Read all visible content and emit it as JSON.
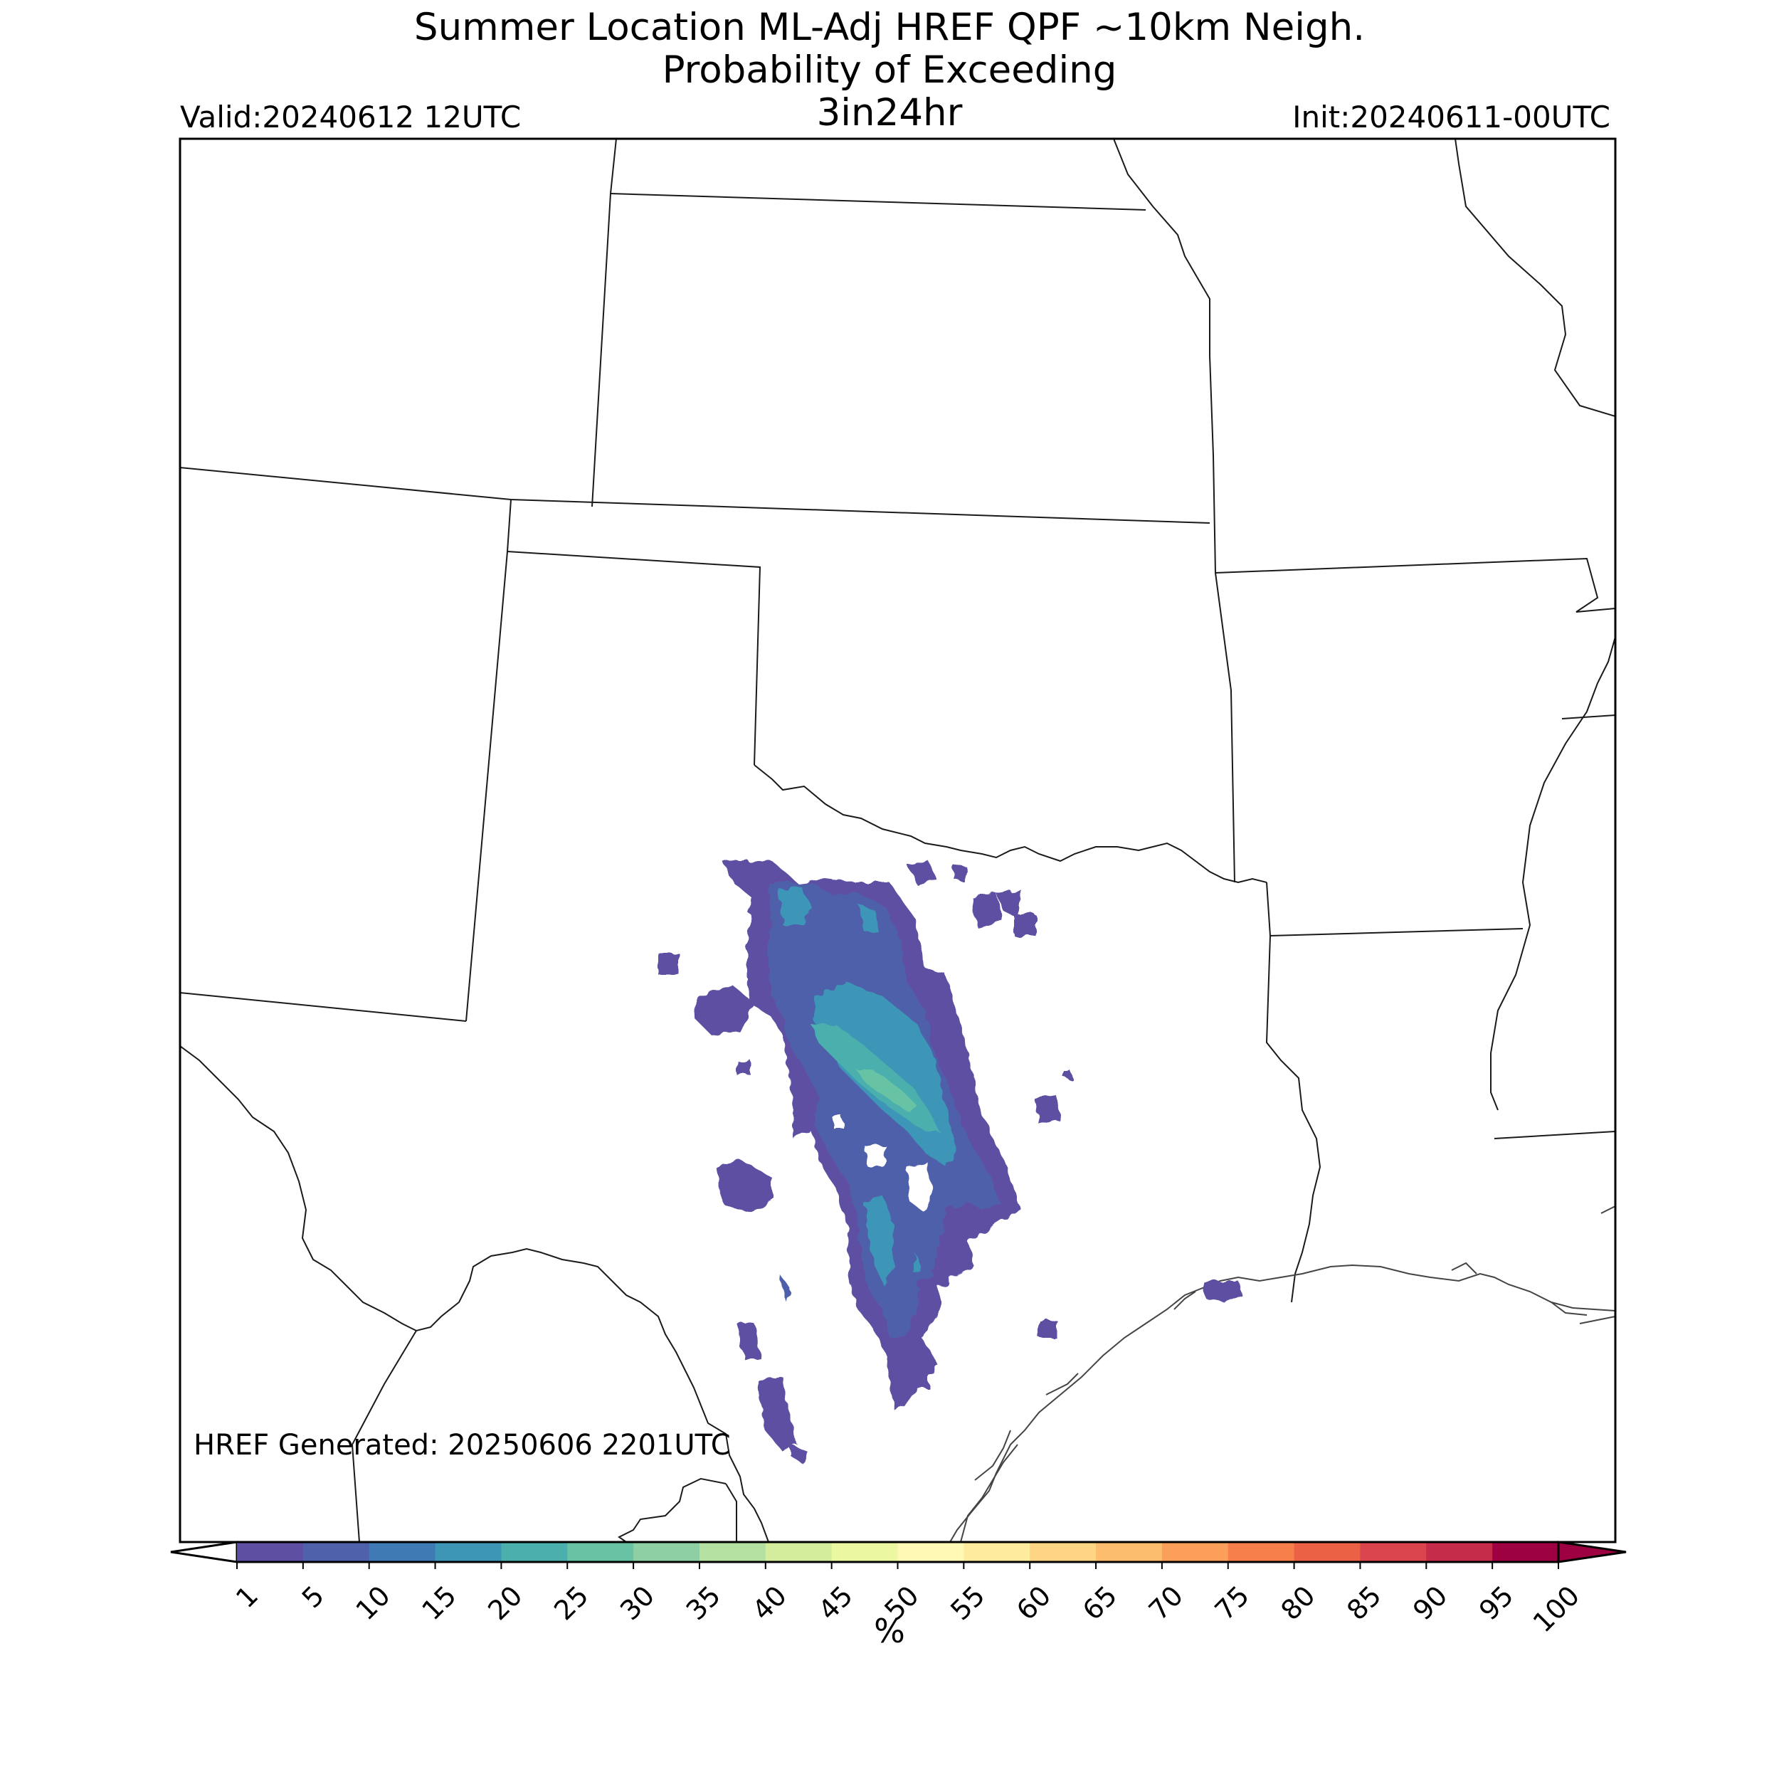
{
  "header": {
    "title_line1": "Summer Location ML-Adj HREF QPF ~10km Neigh.",
    "title_line2": "Probability of Exceeding",
    "title_line3": "3in24hr",
    "valid": "Valid:20240612 12UTC",
    "init": "Init:20240611-00UTC"
  },
  "map": {
    "generated": "HREF Generated: 20250606 2201UTC",
    "probability_field": [
      {
        "name": "main-swath",
        "max_percent": 25
      },
      {
        "name": "west-blob",
        "max_percent": 5
      },
      {
        "name": "north-cells",
        "max_percent": 5
      },
      {
        "name": "south-cells",
        "max_percent": 10
      },
      {
        "name": "coastal-cell",
        "max_percent": 5
      }
    ]
  },
  "colorbar": {
    "ticks": [
      "1",
      "5",
      "10",
      "15",
      "20",
      "25",
      "30",
      "35",
      "40",
      "45",
      "50",
      "55",
      "60",
      "65",
      "70",
      "75",
      "80",
      "85",
      "90",
      "95",
      "100"
    ],
    "colors": [
      "#5e4fa2",
      "#4f61aa",
      "#3f7ab4",
      "#3e96b7",
      "#4bafad",
      "#68c3a5",
      "#8ed0a4",
      "#b4e0a2",
      "#d3ed9c",
      "#ebf7a1",
      "#fff9b5",
      "#feeb9e",
      "#fed683",
      "#fdbd6e",
      "#fb9f5a",
      "#f67f4b",
      "#ea6146",
      "#d9444d",
      "#c42c4a",
      "#9e0142"
    ],
    "unit_label": "%"
  }
}
